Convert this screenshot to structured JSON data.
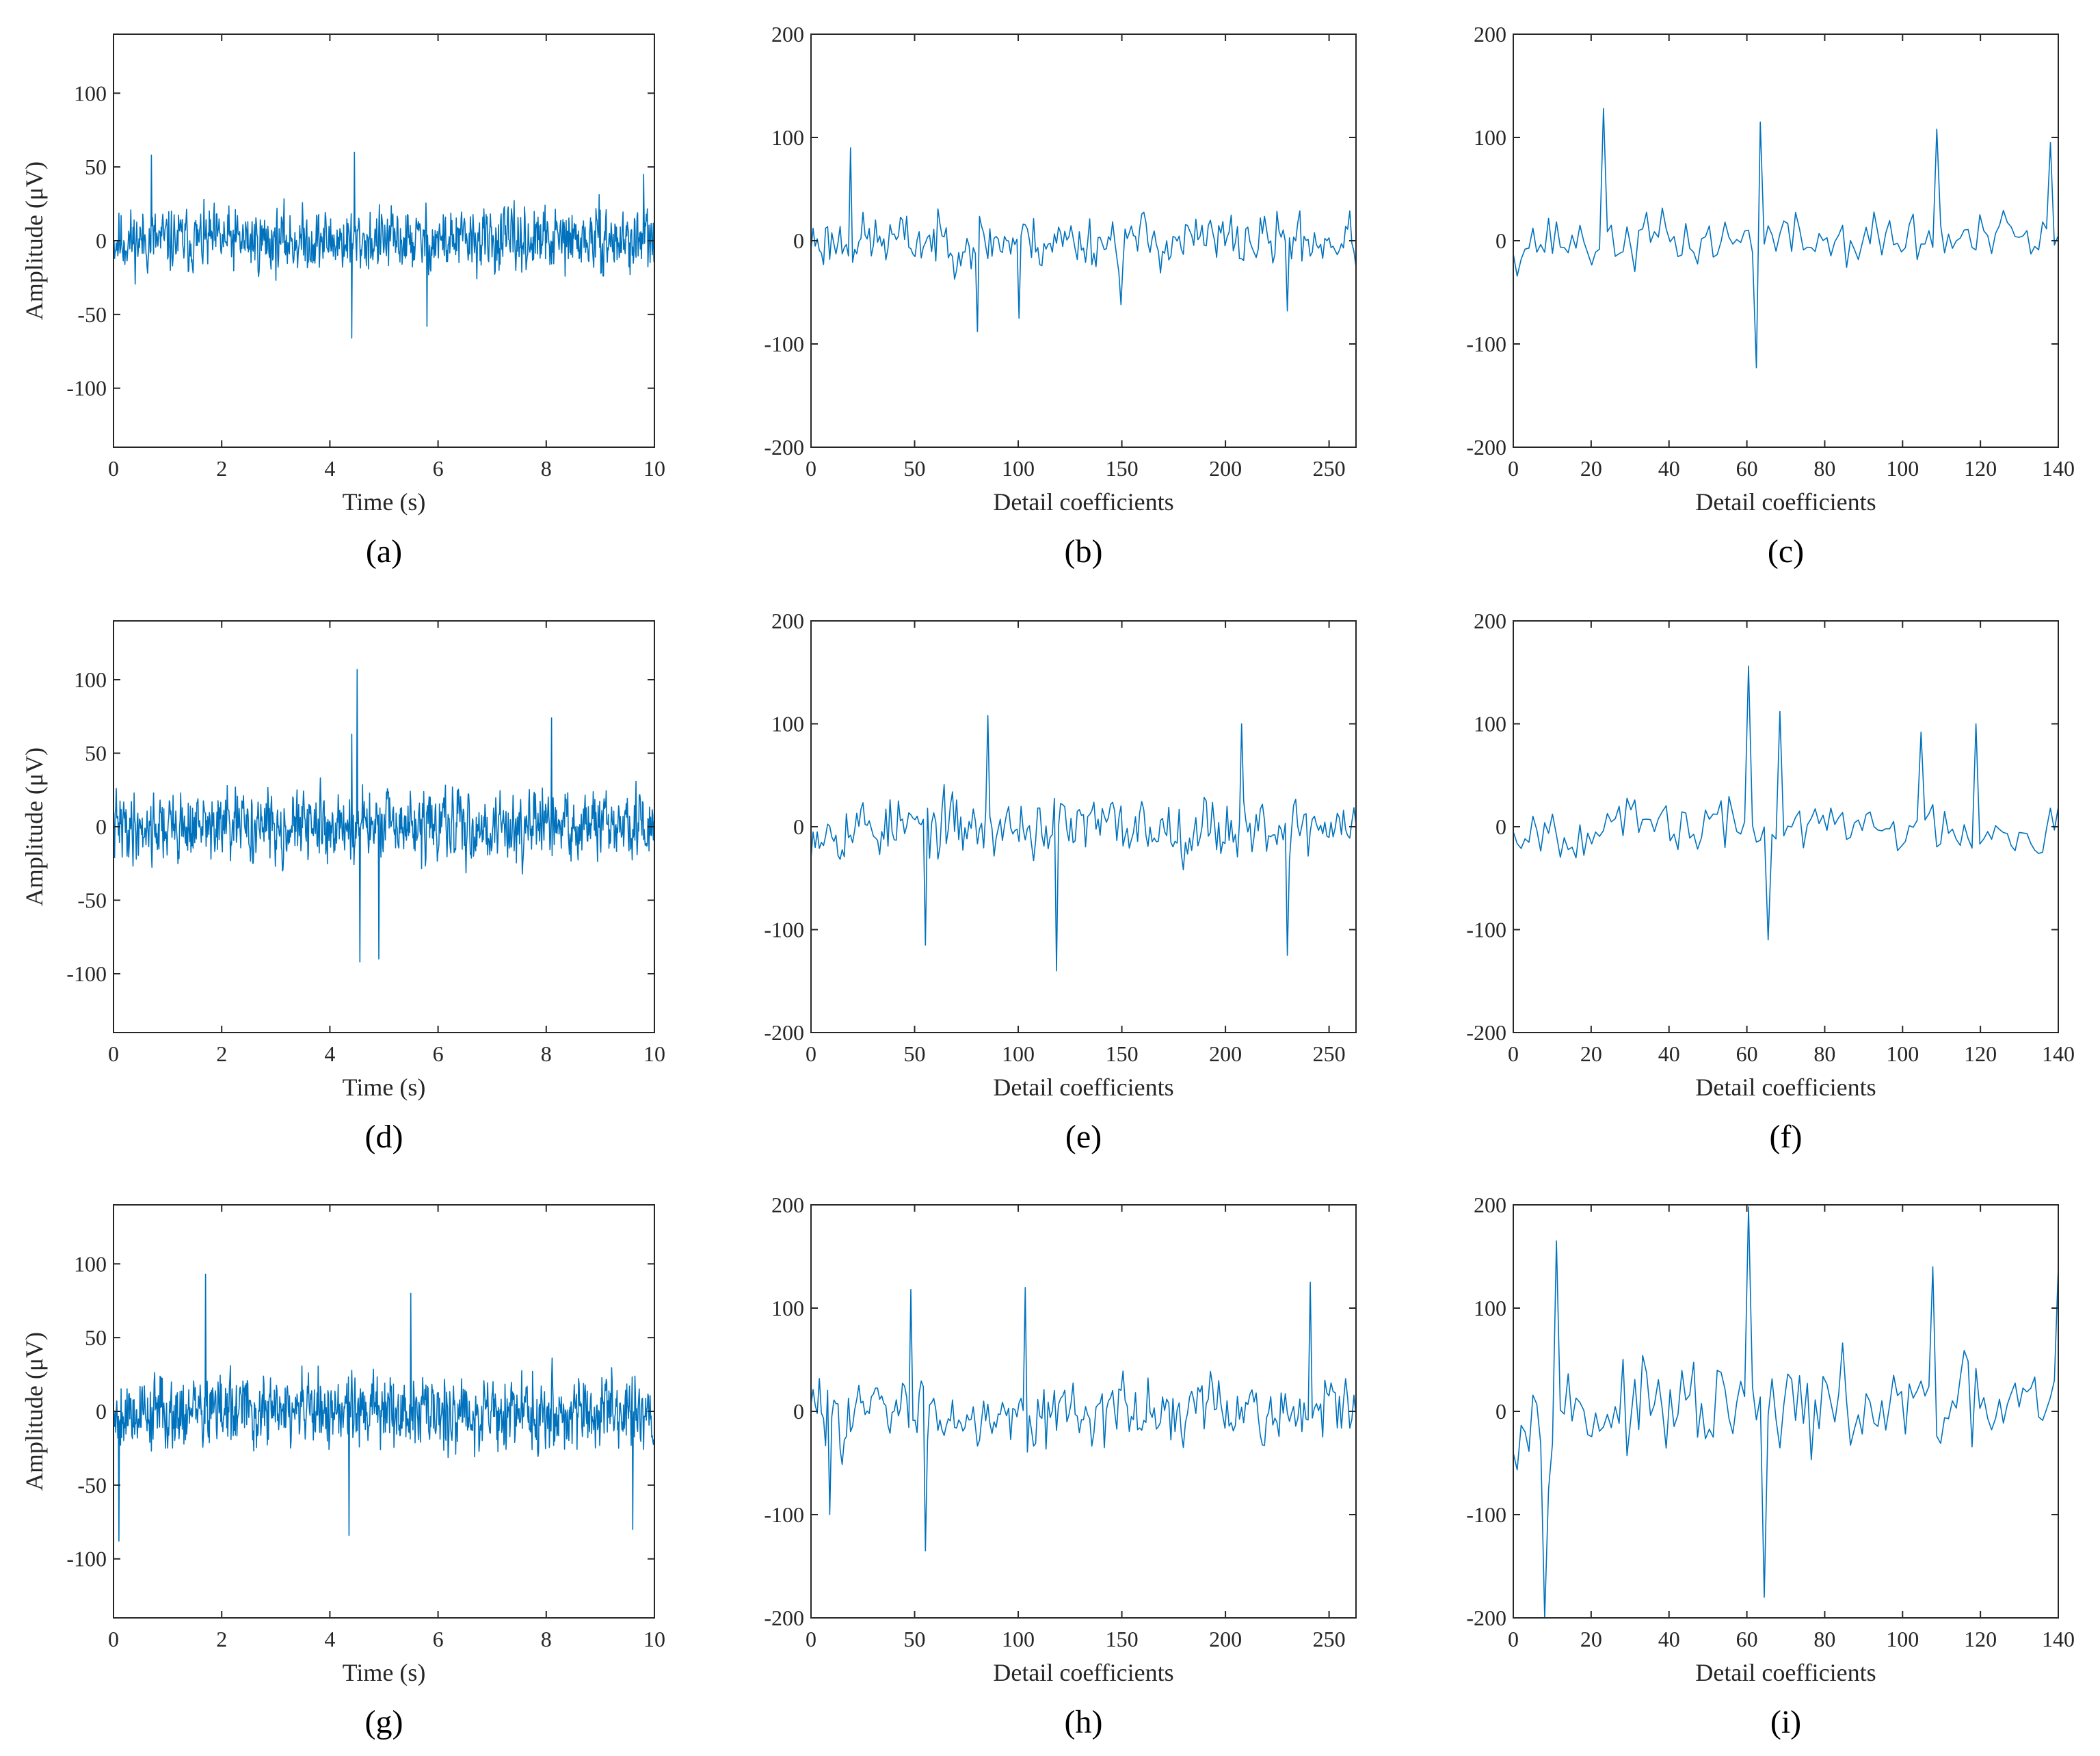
{
  "chart_data": [
    {
      "id": "a",
      "type": "line",
      "panel_label": "(a)",
      "xlabel": "Time (s)",
      "ylabel": "Amplitude (μV)",
      "xlim": [
        0,
        10
      ],
      "ylim": [
        -140,
        140
      ],
      "xticks": [
        0,
        2,
        4,
        6,
        8,
        10
      ],
      "yticks": [
        -100,
        -50,
        0,
        50,
        100
      ],
      "n_points": 1000,
      "amplitude": 55,
      "seed": 11,
      "spikes": [
        [
          0.7,
          58
        ],
        [
          4.4,
          -66
        ],
        [
          4.45,
          60
        ],
        [
          5.8,
          -58
        ],
        [
          9.8,
          45
        ]
      ],
      "color": "#0072BD"
    },
    {
      "id": "b",
      "type": "line",
      "panel_label": "(b)",
      "xlabel": "Detail coefficients",
      "ylabel": "",
      "xlim": [
        0,
        263
      ],
      "ylim": [
        -200,
        200
      ],
      "xticks": [
        0,
        50,
        100,
        150,
        200,
        250
      ],
      "yticks": [
        -200,
        -100,
        0,
        100,
        200
      ],
      "n_points": 263,
      "amplitude": 70,
      "seed": 23,
      "spikes": [
        [
          19,
          90
        ],
        [
          80,
          -88
        ],
        [
          100,
          -75
        ],
        [
          150,
          -62
        ],
        [
          230,
          -68
        ]
      ],
      "color": "#0072BD"
    },
    {
      "id": "c",
      "type": "line",
      "panel_label": "(c)",
      "xlabel": "Detail coefficients",
      "ylabel": "",
      "xlim": [
        0,
        140
      ],
      "ylim": [
        -200,
        200
      ],
      "xticks": [
        0,
        20,
        40,
        60,
        80,
        100,
        120,
        140
      ],
      "yticks": [
        -200,
        -100,
        0,
        100,
        200
      ],
      "n_points": 140,
      "amplitude": 75,
      "seed": 37,
      "spikes": [
        [
          23,
          128
        ],
        [
          62,
          -123
        ],
        [
          63,
          115
        ],
        [
          109,
          108
        ],
        [
          138,
          95
        ]
      ],
      "color": "#0072BD"
    },
    {
      "id": "d",
      "type": "line",
      "panel_label": "(d)",
      "xlabel": "Time (s)",
      "ylabel": "Amplitude (μV)",
      "xlim": [
        0,
        10
      ],
      "ylim": [
        -140,
        140
      ],
      "xticks": [
        0,
        2,
        4,
        6,
        8,
        10
      ],
      "yticks": [
        -100,
        -50,
        0,
        50,
        100
      ],
      "n_points": 1000,
      "amplitude": 60,
      "seed": 41,
      "spikes": [
        [
          4.5,
          107
        ],
        [
          4.55,
          -92
        ],
        [
          4.9,
          -90
        ],
        [
          8.1,
          74
        ],
        [
          4.4,
          63
        ]
      ],
      "color": "#0072BD"
    },
    {
      "id": "e",
      "type": "line",
      "panel_label": "(e)",
      "xlabel": "Detail coefficients",
      "ylabel": "",
      "xlim": [
        0,
        263
      ],
      "ylim": [
        -200,
        200
      ],
      "xticks": [
        0,
        50,
        100,
        150,
        200,
        250
      ],
      "yticks": [
        -200,
        -100,
        0,
        100,
        200
      ],
      "n_points": 263,
      "amplitude": 80,
      "seed": 53,
      "spikes": [
        [
          85,
          108
        ],
        [
          118,
          -140
        ],
        [
          208,
          100
        ],
        [
          230,
          -125
        ],
        [
          55,
          -115
        ]
      ],
      "color": "#0072BD"
    },
    {
      "id": "f",
      "type": "line",
      "panel_label": "(f)",
      "xlabel": "Detail coefficients",
      "ylabel": "",
      "xlim": [
        0,
        140
      ],
      "ylim": [
        -200,
        200
      ],
      "xticks": [
        0,
        20,
        40,
        60,
        80,
        100,
        120,
        140
      ],
      "yticks": [
        -200,
        -100,
        0,
        100,
        200
      ],
      "n_points": 140,
      "amplitude": 70,
      "seed": 67,
      "spikes": [
        [
          60,
          156
        ],
        [
          65,
          -110
        ],
        [
          68,
          112
        ],
        [
          105,
          92
        ],
        [
          119,
          100
        ]
      ],
      "color": "#0072BD"
    },
    {
      "id": "g",
      "type": "line",
      "panel_label": "(g)",
      "xlabel": "Time (s)",
      "ylabel": "Amplitude (μV)",
      "xlim": [
        0,
        10
      ],
      "ylim": [
        -140,
        140
      ],
      "xticks": [
        0,
        2,
        4,
        6,
        8,
        10
      ],
      "yticks": [
        -100,
        -50,
        0,
        50,
        100
      ],
      "n_points": 1000,
      "amplitude": 65,
      "seed": 79,
      "spikes": [
        [
          1.7,
          93
        ],
        [
          0.1,
          -88
        ],
        [
          4.35,
          -84
        ],
        [
          9.6,
          -80
        ],
        [
          5.5,
          80
        ]
      ],
      "color": "#0072BD"
    },
    {
      "id": "h",
      "type": "line",
      "panel_label": "(h)",
      "xlabel": "Detail coefficients",
      "ylabel": "",
      "xlim": [
        0,
        263
      ],
      "ylim": [
        -200,
        200
      ],
      "xticks": [
        0,
        50,
        100,
        150,
        200,
        250
      ],
      "yticks": [
        -200,
        -100,
        0,
        100,
        200
      ],
      "n_points": 263,
      "amplitude": 85,
      "seed": 83,
      "spikes": [
        [
          48,
          118
        ],
        [
          55,
          -135
        ],
        [
          103,
          120
        ],
        [
          241,
          125
        ],
        [
          9,
          -100
        ]
      ],
      "color": "#0072BD"
    },
    {
      "id": "i",
      "type": "line",
      "panel_label": "(i)",
      "xlabel": "Detail coefficients",
      "ylabel": "",
      "xlim": [
        0,
        140
      ],
      "ylim": [
        -200,
        200
      ],
      "xticks": [
        0,
        20,
        40,
        60,
        80,
        100,
        120,
        140
      ],
      "yticks": [
        -200,
        -100,
        0,
        100,
        200
      ],
      "n_points": 140,
      "amplitude": 120,
      "seed": 97,
      "spikes": [
        [
          8,
          -200
        ],
        [
          60,
          198
        ],
        [
          64,
          -180
        ],
        [
          11,
          165
        ],
        [
          108,
          140
        ],
        [
          140,
          140
        ]
      ],
      "color": "#0072BD"
    }
  ]
}
